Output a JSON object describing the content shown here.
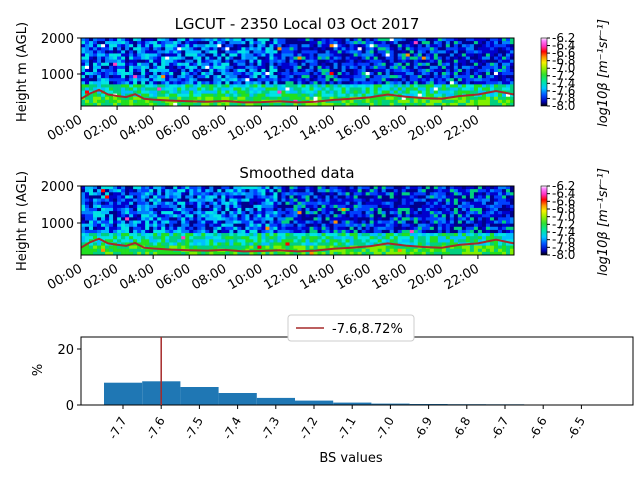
{
  "colors": {
    "line": "#a52a2a",
    "bar": "#1f77b4",
    "text": "#000000"
  },
  "chart_data": [
    {
      "type": "heatmap",
      "title": "LGCUT - 2350 Local 03 Oct 2017",
      "ylabel": "Height m (AGL)",
      "yticks": [
        "1000",
        "2000"
      ],
      "ylim": [
        100,
        2000
      ],
      "xticks": [
        "00:00",
        "02:00",
        "04:00",
        "06:00",
        "08:00",
        "10:00",
        "12:00",
        "14:00",
        "16:00",
        "18:00",
        "20:00",
        "22:00"
      ],
      "xlim_hours": [
        0,
        24
      ],
      "colorbar_label": "log10β [m⁻¹sr⁻¹]",
      "colorbar_ticks": [
        "-6.2",
        "-6.4",
        "-6.6",
        "-6.8",
        "-7.0",
        "-7.2",
        "-7.4",
        "-7.6",
        "-7.8",
        "-8.0"
      ],
      "colorbar_range": [
        -8.0,
        -6.2
      ],
      "boundary_layer_height_m": {
        "hours": [
          0,
          0.5,
          1,
          1.5,
          2,
          2.5,
          3,
          3.5,
          4,
          5,
          6,
          7,
          8,
          9,
          10,
          11,
          12,
          13,
          14,
          15,
          16,
          17,
          18,
          19,
          20,
          21,
          22,
          23,
          24
        ],
        "values": [
          300,
          450,
          550,
          420,
          380,
          350,
          430,
          300,
          280,
          250,
          230,
          220,
          240,
          200,
          210,
          230,
          200,
          220,
          270,
          300,
          340,
          420,
          360,
          320,
          300,
          380,
          420,
          520,
          420
        ]
      }
    },
    {
      "type": "heatmap",
      "title": "Smoothed data",
      "ylabel": "Height m (AGL)",
      "yticks": [
        "1000",
        "2000"
      ],
      "ylim": [
        100,
        2000
      ],
      "xticks": [
        "00:00",
        "02:00",
        "04:00",
        "06:00",
        "08:00",
        "10:00",
        "12:00",
        "14:00",
        "16:00",
        "18:00",
        "20:00",
        "22:00"
      ],
      "xlim_hours": [
        0,
        24
      ],
      "colorbar_label": "log10β [m⁻¹sr⁻¹]",
      "colorbar_ticks": [
        "-6.2",
        "-6.4",
        "-6.6",
        "-6.8",
        "-7.0",
        "-7.2",
        "-7.4",
        "-7.6",
        "-7.8",
        "-8.0"
      ],
      "colorbar_range": [
        -8.0,
        -6.2
      ],
      "boundary_layer_height_m": {
        "hours": [
          0,
          0.5,
          1,
          1.5,
          2,
          2.5,
          3,
          3.5,
          4,
          5,
          6,
          7,
          8,
          9,
          10,
          11,
          12,
          13,
          14,
          15,
          16,
          17,
          18,
          19,
          20,
          21,
          22,
          23,
          24
        ],
        "values": [
          300,
          450,
          550,
          420,
          380,
          350,
          430,
          300,
          280,
          250,
          230,
          220,
          240,
          200,
          210,
          230,
          200,
          220,
          270,
          300,
          340,
          420,
          360,
          320,
          300,
          380,
          420,
          520,
          420
        ]
      }
    },
    {
      "type": "bar",
      "xlabel": "BS values",
      "ylabel": "%",
      "yticks": [
        0,
        20
      ],
      "ylim": [
        0,
        25
      ],
      "categories": [
        "-7.7",
        "-7.6",
        "-7.5",
        "-7.4",
        "-7.3",
        "-7.2",
        "-7.1",
        "-7.0",
        "-6.9",
        "-6.8",
        "-6.7",
        "-6.6",
        "-6.5"
      ],
      "values": [
        8.2,
        8.72,
        6.6,
        4.4,
        2.6,
        1.6,
        0.9,
        0.5,
        0.35,
        0.3,
        0.25,
        0.15,
        0.1
      ],
      "tick_labels": [
        "-7.7",
        "-7.6",
        "-7.5",
        "-7.4",
        "-7.3",
        "-7.2",
        "-7.1",
        "-7.0",
        "-6.9",
        "-6.8",
        "-6.7",
        "-6.6",
        "-6.5"
      ],
      "marker_value": -7.6,
      "legend": "-7.6,8.72%",
      "legend_position": "top-center"
    }
  ]
}
